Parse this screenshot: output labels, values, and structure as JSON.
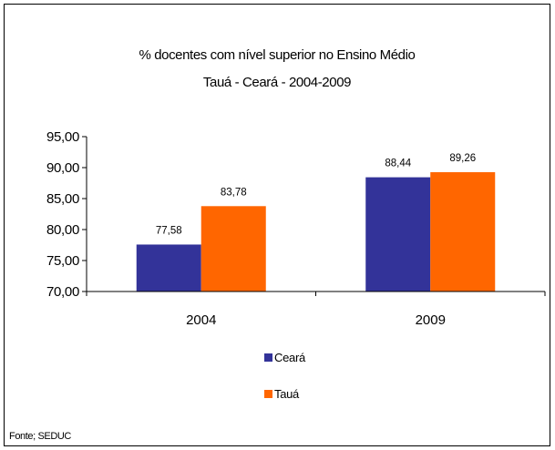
{
  "chart_data": {
    "type": "bar",
    "title": "% docentes com nível  superior no Ensino Médio",
    "subtitle": "Tauá   -  Ceará - 2004-2009",
    "categories": [
      "2004",
      "2009"
    ],
    "series": [
      {
        "name": "Ceará",
        "values": [
          77.58,
          88.44
        ],
        "labels": [
          "77,58",
          "88,44"
        ],
        "color": "#333399"
      },
      {
        "name": "Tauá",
        "values": [
          83.78,
          89.26
        ],
        "labels": [
          "83,78",
          "89,26"
        ],
        "color": "#FF6600"
      }
    ],
    "ylim": [
      70,
      95
    ],
    "yticks": [
      70,
      75,
      80,
      85,
      90,
      95
    ],
    "ytick_labels": [
      "70,00",
      "75,00",
      "80,00",
      "85,00",
      "90,00",
      "95,00"
    ],
    "grid": false,
    "legend_position": "bottom",
    "source": "Fonte; SEDUC"
  }
}
